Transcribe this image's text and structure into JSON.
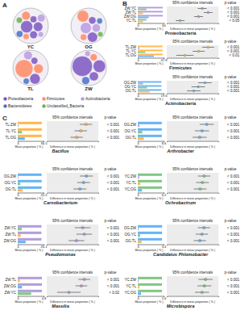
{
  "chart_data": [
    {
      "type": "circle_packing",
      "panel": "A",
      "legend": "bottom",
      "series": [
        {
          "name": "Proteobacteria",
          "color": "#7e57c2"
        },
        {
          "name": "Firmicutes",
          "color": "#ff8a65"
        },
        {
          "name": "Actinobacteria",
          "color": "#ba9be0"
        },
        {
          "name": "Bacteroidetes",
          "color": "#4a72c4"
        },
        {
          "name": "Unclassified_Bacteria",
          "color": "#6ab04c"
        }
      ],
      "sites": [
        {
          "name": "YC",
          "children": [
            {
              "phylum": "Proteobacteria",
              "value": 20
            },
            {
              "phylum": "Proteobacteria",
              "value": 12
            },
            {
              "phylum": "Proteobacteria",
              "value": 8
            },
            {
              "phylum": "Proteobacteria",
              "value": 6
            },
            {
              "phylum": "Firmicutes",
              "value": 10
            },
            {
              "phylum": "Firmicutes",
              "value": 5
            },
            {
              "phylum": "Actinobacteria",
              "value": 8
            },
            {
              "phylum": "Actinobacteria",
              "value": 4
            },
            {
              "phylum": "Bacteroidetes",
              "value": 6
            },
            {
              "phylum": "Unclassified_Bacteria",
              "value": 5
            }
          ]
        },
        {
          "name": "OG",
          "children": [
            {
              "phylum": "Actinobacteria",
              "value": 18
            },
            {
              "phylum": "Actinobacteria",
              "value": 10
            },
            {
              "phylum": "Proteobacteria",
              "value": 15
            },
            {
              "phylum": "Proteobacteria",
              "value": 8
            },
            {
              "phylum": "Firmicutes",
              "value": 20
            },
            {
              "phylum": "Firmicutes",
              "value": 6
            },
            {
              "phylum": "Bacteroidetes",
              "value": 5
            },
            {
              "phylum": "Unclassified_Bacteria",
              "value": 4
            }
          ]
        },
        {
          "name": "TL",
          "children": [
            {
              "phylum": "Firmicutes",
              "value": 35
            },
            {
              "phylum": "Firmicutes",
              "value": 10
            },
            {
              "phylum": "Proteobacteria",
              "value": 12
            },
            {
              "phylum": "Proteobacteria",
              "value": 5
            },
            {
              "phylum": "Actinobacteria",
              "value": 8
            },
            {
              "phylum": "Bacteroidetes",
              "value": 4
            }
          ]
        },
        {
          "name": "ZW",
          "children": [
            {
              "phylum": "Proteobacteria",
              "value": 40
            },
            {
              "phylum": "Proteobacteria",
              "value": 15
            },
            {
              "phylum": "Proteobacteria",
              "value": 8
            },
            {
              "phylum": "Firmicutes",
              "value": 5
            },
            {
              "phylum": "Actinobacteria",
              "value": 3
            },
            {
              "phylum": "Bacteroidetes",
              "value": 6
            }
          ]
        }
      ]
    },
    {
      "type": "stamp",
      "panel": "B",
      "title": "Proteobacteria",
      "header_ci": "95% confidence intervals",
      "header_p": "p-value",
      "xlabel": "Mean proportion ( % )",
      "x2label": "Difference in mean proportion ( % )",
      "xlim": [
        0,
        60
      ],
      "xticks": [
        0,
        60
      ],
      "diff_xlim": [
        -10,
        60
      ],
      "rows": [
        {
          "label": "ZW:YC",
          "means": [
            58,
            20
          ],
          "colors": [
            "#b39ddb",
            "#81c784"
          ],
          "diff": 38,
          "ci": [
            32,
            44
          ],
          "p": "< 0.001"
        },
        {
          "label": "ZW:TL",
          "means": [
            58,
            12
          ],
          "colors": [
            "#b39ddb",
            "#ffb74d"
          ],
          "diff": 46,
          "ci": [
            40,
            52
          ],
          "p": "< 0.001"
        },
        {
          "label": "ZW:OG",
          "means": [
            58,
            25
          ],
          "colors": [
            "#b39ddb",
            "#64b5f6"
          ],
          "diff": 33,
          "ci": [
            27,
            39
          ],
          "p": "< 0.001"
        },
        {
          "label": "YC:TL",
          "means": [
            20,
            12
          ],
          "colors": [
            "#81c784",
            "#ffb74d"
          ],
          "diff": 8,
          "ci": [
            2,
            14
          ],
          "p": "< 0.05"
        }
      ]
    },
    {
      "type": "stamp",
      "title": "Firmicutes",
      "header_ci": "95% confidence intervals",
      "header_p": "p-value",
      "xlabel": "Mean proportion ( % )",
      "x2label": "Difference in mean proportion ( % )",
      "xlim": [
        0,
        47.8
      ],
      "xticks": [
        0,
        47.8
      ],
      "diff_xlim": [
        -5,
        55
      ],
      "rows": [
        {
          "label": "TL:ZW",
          "means": [
            46,
            3
          ],
          "colors": [
            "#ffb74d",
            "#b39ddb"
          ],
          "diff": 43,
          "ci": [
            36,
            50
          ],
          "p": "< 0.001"
        },
        {
          "label": "TL:YC",
          "means": [
            46,
            14
          ],
          "colors": [
            "#ffb74d",
            "#81c784"
          ],
          "diff": 32,
          "ci": [
            25,
            39
          ],
          "p": "< 0.001"
        },
        {
          "label": "TL:OG",
          "means": [
            46,
            30
          ],
          "colors": [
            "#ffb74d",
            "#64b5f6"
          ],
          "diff": 16,
          "ci": [
            6,
            26
          ],
          "p": "< 0.01"
        }
      ]
    },
    {
      "type": "stamp",
      "title": "Actinobacteria",
      "header_ci": "95% confidence intervals",
      "header_p": "p-value",
      "xlabel": "Mean proportion ( % )",
      "x2label": "Difference in mean proportion ( % )",
      "xlim": [
        0,
        19.6
      ],
      "xticks": [
        0,
        19.6
      ],
      "diff_xlim": [
        -3,
        20
      ],
      "rows": [
        {
          "label": "OG:ZW",
          "means": [
            18,
            4
          ],
          "colors": [
            "#64b5f6",
            "#b39ddb"
          ],
          "diff": 14,
          "ci": [
            11,
            17
          ],
          "p": "< 0.001"
        },
        {
          "label": "OG:YC",
          "means": [
            18,
            7
          ],
          "colors": [
            "#64b5f6",
            "#81c784"
          ],
          "diff": 11,
          "ci": [
            8,
            14
          ],
          "p": "< 0.001"
        },
        {
          "label": "OG:TL",
          "means": [
            18,
            9
          ],
          "colors": [
            "#64b5f6",
            "#ffb74d"
          ],
          "diff": 9,
          "ci": [
            6,
            12
          ],
          "p": "< 0.001"
        }
      ]
    },
    {
      "type": "stamp",
      "panel": "C",
      "title": "Bacillus",
      "header_ci": "95% confidence intervals",
      "header_p": "p-value",
      "xlabel": "Mean proportion ( % )",
      "x2label": "Difference in mean proportion ( % )",
      "xlim": [
        0,
        36.5
      ],
      "xticks": [
        0,
        36.5
      ],
      "diff_xlim": [
        -5,
        45
      ],
      "rows": [
        {
          "label": "TL:ZW",
          "means": [
            34,
            1
          ],
          "colors": [
            "#ffb74d",
            "#b39ddb"
          ],
          "diff": 33,
          "ci": [
            27,
            39
          ],
          "p": "< 0.001"
        },
        {
          "label": "TL:YC",
          "means": [
            34,
            6
          ],
          "colors": [
            "#ffb74d",
            "#81c784"
          ],
          "diff": 28,
          "ci": [
            22,
            34
          ],
          "p": "< 0.001"
        },
        {
          "label": "TL:OG",
          "means": [
            34,
            10
          ],
          "colors": [
            "#ffb74d",
            "#64b5f6"
          ],
          "diff": 24,
          "ci": [
            18,
            30
          ],
          "p": "< 0.001"
        }
      ]
    },
    {
      "type": "stamp",
      "title": "Carnobacterium",
      "header_ci": "95% confidence intervals",
      "header_p": "p-value",
      "xlabel": "Mean proportion ( % )",
      "x2label": "Difference in mean proportion ( % )",
      "xlim": [
        0,
        20.5
      ],
      "xticks": [
        0,
        20.5
      ],
      "diff_xlim": [
        -3,
        25
      ],
      "rows": [
        {
          "label": "OG:ZW",
          "means": [
            19,
            0.5
          ],
          "colors": [
            "#64b5f6",
            "#b39ddb"
          ],
          "diff": 18.5,
          "ci": [
            15,
            22
          ],
          "p": "< 0.001"
        },
        {
          "label": "OG:YC",
          "means": [
            19,
            2
          ],
          "colors": [
            "#64b5f6",
            "#81c784"
          ],
          "diff": 17,
          "ci": [
            13.5,
            20.5
          ],
          "p": "< 0.001"
        },
        {
          "label": "OG:TL",
          "means": [
            19,
            4
          ],
          "colors": [
            "#64b5f6",
            "#ffb74d"
          ],
          "diff": 15,
          "ci": [
            11.5,
            18.5
          ],
          "p": "< 0.001"
        }
      ]
    },
    {
      "type": "stamp",
      "title": "Pseudomonas",
      "header_ci": "95% confidence intervals",
      "header_p": "p-value",
      "xlabel": "Mean proportion ( % )",
      "x2label": "Difference in mean proportion ( % )",
      "xlim": [
        0,
        26.1
      ],
      "xticks": [
        0,
        26.1
      ],
      "diff_xlim": [
        -3,
        30
      ],
      "rows": [
        {
          "label": "ZW:YC",
          "means": [
            24,
            4
          ],
          "colors": [
            "#b39ddb",
            "#81c784"
          ],
          "diff": 20,
          "ci": [
            15,
            25
          ],
          "p": "< 0.001"
        },
        {
          "label": "ZW:TL",
          "means": [
            24,
            3
          ],
          "colors": [
            "#b39ddb",
            "#ffb74d"
          ],
          "diff": 21,
          "ci": [
            16,
            26
          ],
          "p": "< 0.001"
        },
        {
          "label": "ZW:OG",
          "means": [
            24,
            8
          ],
          "colors": [
            "#b39ddb",
            "#64b5f6"
          ],
          "diff": 16,
          "ci": [
            11,
            21
          ],
          "p": "< 0.001"
        }
      ]
    },
    {
      "type": "stamp",
      "title": "Massilia",
      "header_ci": "95% confidence intervals",
      "header_p": "p-value",
      "xlabel": "Mean proportion ( % )",
      "x2label": "Difference in mean proportion ( % )",
      "xlim": [
        0,
        4.8
      ],
      "xticks": [
        0,
        4.8
      ],
      "diff_xlim": [
        -1,
        6
      ],
      "rows": [
        {
          "label": "ZW:TL",
          "means": [
            4.5,
            0.4
          ],
          "colors": [
            "#b39ddb",
            "#ffb74d"
          ],
          "diff": 4.1,
          "ci": [
            3.3,
            4.9
          ],
          "p": "< 0.001"
        },
        {
          "label": "ZW:OG",
          "means": [
            4.5,
            0.8
          ],
          "colors": [
            "#b39ddb",
            "#64b5f6"
          ],
          "diff": 3.7,
          "ci": [
            2.9,
            4.5
          ],
          "p": "< 0.001"
        },
        {
          "label": "ZW:YC",
          "means": [
            4.5,
            2.5
          ],
          "colors": [
            "#b39ddb",
            "#81c784"
          ],
          "diff": 2.0,
          "ci": [
            0.4,
            3.6
          ],
          "p": "< 0.02"
        }
      ]
    },
    {
      "type": "stamp",
      "title": "Arthrobacter",
      "header_ci": "95% confidence intervals",
      "header_p": "p-value",
      "xlabel": "Mean proportion ( % )",
      "x2label": "Difference in mean proportion ( % )",
      "xlim": [
        0,
        8.6
      ],
      "xticks": [
        0,
        8.6
      ],
      "diff_xlim": [
        -1,
        10
      ],
      "rows": [
        {
          "label": "OG:ZW",
          "means": [
            8,
            0.5
          ],
          "colors": [
            "#64b5f6",
            "#b39ddb"
          ],
          "diff": 7.5,
          "ci": [
            6,
            9
          ],
          "p": "< 0.001"
        },
        {
          "label": "OG:YC",
          "means": [
            8,
            1.5
          ],
          "colors": [
            "#64b5f6",
            "#81c784"
          ],
          "diff": 6.5,
          "ci": [
            5,
            8
          ],
          "p": "< 0.001"
        },
        {
          "label": "OG:TL",
          "means": [
            8,
            2
          ],
          "colors": [
            "#64b5f6",
            "#ffb74d"
          ],
          "diff": 6,
          "ci": [
            4.5,
            7.5
          ],
          "p": "< 0.001"
        }
      ]
    },
    {
      "type": "stamp",
      "title": "Ochrobactrum",
      "header_ci": "95% confidence intervals",
      "header_p": "p-value",
      "xlabel": "Mean proportion ( % )",
      "x2label": "Difference in mean proportion ( % )",
      "xlim": [
        0,
        6.2
      ],
      "xticks": [
        0,
        6.2
      ],
      "diff_xlim": [
        -1,
        8
      ],
      "rows": [
        {
          "label": "YC:ZW",
          "means": [
            5.8,
            0.3
          ],
          "colors": [
            "#81c784",
            "#b39ddb"
          ],
          "diff": 5.5,
          "ci": [
            4.4,
            6.6
          ],
          "p": "< 0.001"
        },
        {
          "label": "YC:TL",
          "means": [
            5.8,
            0.6
          ],
          "colors": [
            "#81c784",
            "#ffb74d"
          ],
          "diff": 5.2,
          "ci": [
            4.1,
            6.3
          ],
          "p": "< 0.001"
        },
        {
          "label": "YC:OG",
          "means": [
            5.8,
            1
          ],
          "colors": [
            "#81c784",
            "#64b5f6"
          ],
          "diff": 4.8,
          "ci": [
            3.7,
            5.9
          ],
          "p": "< 0.001"
        }
      ]
    },
    {
      "type": "stamp",
      "title": "Candidatus Phlomobacter",
      "header_ci": "95% confidence intervals",
      "header_p": "p-value",
      "xlabel": "Mean proportion ( % )",
      "x2label": "Difference in mean proportion ( % )",
      "xlim": [
        0,
        3.4
      ],
      "xticks": [
        0,
        3.4
      ],
      "diff_xlim": [
        -0.5,
        4.5
      ],
      "rows": [
        {
          "label": "OG:ZW",
          "means": [
            3.2,
            0.1
          ],
          "colors": [
            "#64b5f6",
            "#b39ddb"
          ],
          "diff": 3.1,
          "ci": [
            2.5,
            3.7
          ],
          "p": "< 0.001"
        },
        {
          "label": "OG:YC",
          "means": [
            3.2,
            0.3
          ],
          "colors": [
            "#64b5f6",
            "#81c784"
          ],
          "diff": 2.9,
          "ci": [
            2.3,
            3.5
          ],
          "p": "< 0.001"
        },
        {
          "label": "OG:TL",
          "means": [
            3.2,
            0.5
          ],
          "colors": [
            "#64b5f6",
            "#ffb74d"
          ],
          "diff": 2.7,
          "ci": [
            2.1,
            3.3
          ],
          "p": "< 0.001"
        }
      ]
    },
    {
      "type": "stamp",
      "title": "Microbispora",
      "header_ci": "95% confidence intervals",
      "header_p": "p-value",
      "xlabel": "Mean proportion ( % )",
      "x2label": "Difference in mean proportion ( % )",
      "xlim": [
        0,
        1.6
      ],
      "xticks": [
        0,
        1.6
      ],
      "diff_xlim": [
        -0.2,
        2
      ],
      "rows": [
        {
          "label": "YC:ZW",
          "means": [
            1.5,
            0.05
          ],
          "colors": [
            "#81c784",
            "#b39ddb"
          ],
          "diff": 1.45,
          "ci": [
            1.15,
            1.75
          ],
          "p": "< 0.001"
        },
        {
          "label": "YC:TL",
          "means": [
            1.5,
            0.1
          ],
          "colors": [
            "#81c784",
            "#ffb74d"
          ],
          "diff": 1.4,
          "ci": [
            1.1,
            1.7
          ],
          "p": "< 0.001"
        },
        {
          "label": "YC:OG",
          "means": [
            1.5,
            0.2
          ],
          "colors": [
            "#81c784",
            "#64b5f6"
          ],
          "diff": 1.3,
          "ci": [
            1.0,
            1.6
          ],
          "p": "< 0.001"
        }
      ]
    }
  ]
}
